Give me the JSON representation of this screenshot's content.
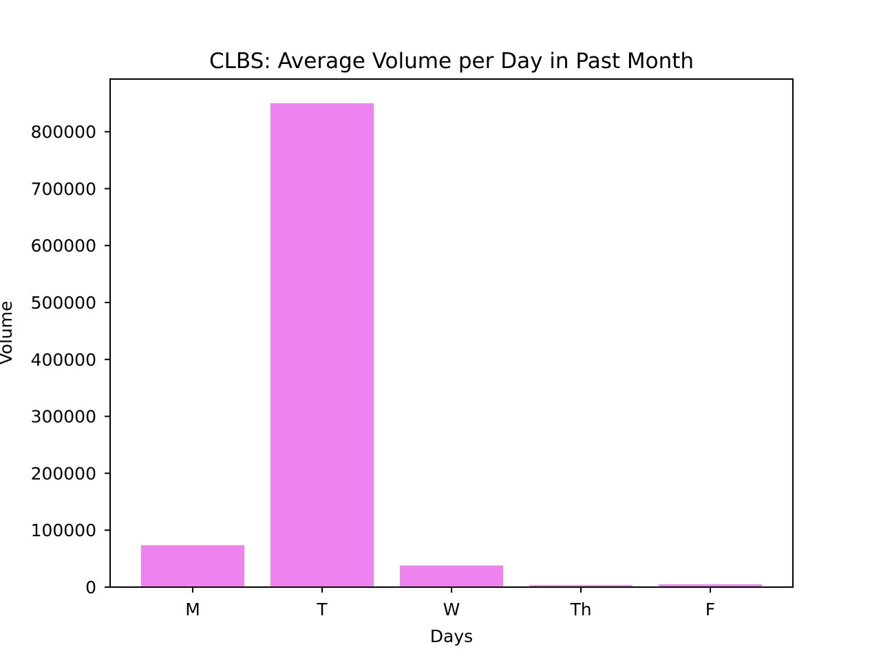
{
  "chart_data": {
    "type": "bar",
    "title": "CLBS: Average Volume per Day in Past Month",
    "xlabel": "Days",
    "ylabel": "Volume",
    "categories": [
      "M",
      "T",
      "W",
      "Th",
      "F"
    ],
    "values": [
      73500,
      850000,
      38000,
      3500,
      5000
    ],
    "ylim": [
      0,
      892500
    ],
    "yticks": [
      0,
      100000,
      200000,
      300000,
      400000,
      500000,
      600000,
      700000,
      800000
    ],
    "ytick_labels": [
      "0",
      "100000",
      "200000",
      "300000",
      "400000",
      "500000",
      "600000",
      "700000",
      "800000"
    ],
    "bar_color": "#ee82ee",
    "grid": false,
    "legend": "none"
  }
}
